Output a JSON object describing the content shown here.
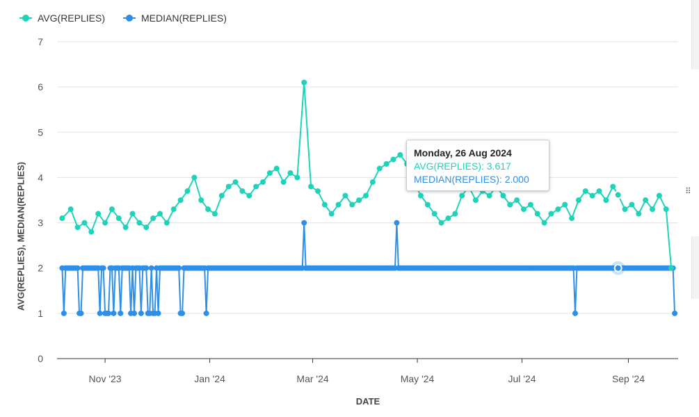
{
  "chart_data": {
    "type": "line",
    "xlabel": "DATE",
    "ylabel": "AVG(REPLIES), MEDIAN(REPLIES)",
    "ylim": [
      0,
      7
    ],
    "yticks": [
      0,
      1,
      2,
      3,
      4,
      5,
      6,
      7
    ],
    "xlim": [
      "2023-10-04",
      "2024-09-30"
    ],
    "xticks": [
      {
        "date": "2023-11-01",
        "label": "Nov '23"
      },
      {
        "date": "2024-01-01",
        "label": "Jan '24"
      },
      {
        "date": "2024-03-01",
        "label": "Mar '24"
      },
      {
        "date": "2024-05-01",
        "label": "May '24"
      },
      {
        "date": "2024-07-01",
        "label": "Jul '24"
      },
      {
        "date": "2024-09-01",
        "label": "Sep '24"
      }
    ],
    "grid": true,
    "legend": "top-left",
    "series": [
      {
        "name": "AVG(REPLIES)",
        "color": "#1ed3b9",
        "points": [
          [
            "2023-10-07",
            3.1
          ],
          [
            "2023-10-12",
            3.3
          ],
          [
            "2023-10-16",
            2.9
          ],
          [
            "2023-10-20",
            3.0
          ],
          [
            "2023-10-24",
            2.8
          ],
          [
            "2023-10-28",
            3.2
          ],
          [
            "2023-11-01",
            3.0
          ],
          [
            "2023-11-05",
            3.3
          ],
          [
            "2023-11-09",
            3.1
          ],
          [
            "2023-11-13",
            2.9
          ],
          [
            "2023-11-17",
            3.2
          ],
          [
            "2023-11-21",
            3.0
          ],
          [
            "2023-11-25",
            2.9
          ],
          [
            "2023-11-29",
            3.1
          ],
          [
            "2023-12-03",
            3.2
          ],
          [
            "2023-12-07",
            3.0
          ],
          [
            "2023-12-11",
            3.3
          ],
          [
            "2023-12-15",
            3.5
          ],
          [
            "2023-12-19",
            3.7
          ],
          [
            "2023-12-23",
            4.0
          ],
          [
            "2023-12-27",
            3.5
          ],
          [
            "2023-12-31",
            3.3
          ],
          [
            "2024-01-04",
            3.2
          ],
          [
            "2024-01-08",
            3.6
          ],
          [
            "2024-01-12",
            3.8
          ],
          [
            "2024-01-16",
            3.9
          ],
          [
            "2024-01-20",
            3.7
          ],
          [
            "2024-01-24",
            3.6
          ],
          [
            "2024-01-28",
            3.8
          ],
          [
            "2024-02-01",
            3.9
          ],
          [
            "2024-02-05",
            4.1
          ],
          [
            "2024-02-09",
            4.2
          ],
          [
            "2024-02-13",
            3.9
          ],
          [
            "2024-02-17",
            4.1
          ],
          [
            "2024-02-21",
            4.0
          ],
          [
            "2024-02-25",
            6.1
          ],
          [
            "2024-02-29",
            3.8
          ],
          [
            "2024-03-04",
            3.7
          ],
          [
            "2024-03-08",
            3.4
          ],
          [
            "2024-03-12",
            3.2
          ],
          [
            "2024-03-16",
            3.4
          ],
          [
            "2024-03-20",
            3.6
          ],
          [
            "2024-03-24",
            3.4
          ],
          [
            "2024-03-28",
            3.5
          ],
          [
            "2024-04-01",
            3.6
          ],
          [
            "2024-04-05",
            3.9
          ],
          [
            "2024-04-09",
            4.2
          ],
          [
            "2024-04-13",
            4.3
          ],
          [
            "2024-04-17",
            4.4
          ],
          [
            "2024-04-21",
            4.5
          ],
          [
            "2024-04-25",
            4.3
          ],
          [
            "2024-04-29",
            3.9
          ],
          [
            "2024-05-03",
            3.6
          ],
          [
            "2024-05-07",
            3.4
          ],
          [
            "2024-05-11",
            3.2
          ],
          [
            "2024-05-15",
            3.0
          ],
          [
            "2024-05-19",
            3.1
          ],
          [
            "2024-05-23",
            3.2
          ],
          [
            "2024-05-27",
            3.6
          ],
          [
            "2024-05-31",
            3.8
          ],
          [
            "2024-06-04",
            3.5
          ],
          [
            "2024-06-08",
            3.7
          ],
          [
            "2024-06-12",
            3.6
          ],
          [
            "2024-06-16",
            3.8
          ],
          [
            "2024-06-20",
            3.6
          ],
          [
            "2024-06-24",
            3.4
          ],
          [
            "2024-06-28",
            3.5
          ],
          [
            "2024-07-02",
            3.3
          ],
          [
            "2024-07-06",
            3.4
          ],
          [
            "2024-07-10",
            3.2
          ],
          [
            "2024-07-14",
            3.0
          ],
          [
            "2024-07-18",
            3.2
          ],
          [
            "2024-07-22",
            3.3
          ],
          [
            "2024-07-26",
            3.4
          ],
          [
            "2024-07-30",
            3.1
          ],
          [
            "2024-08-03",
            3.5
          ],
          [
            "2024-08-07",
            3.7
          ],
          [
            "2024-08-11",
            3.6
          ],
          [
            "2024-08-15",
            3.7
          ],
          [
            "2024-08-19",
            3.5
          ],
          [
            "2024-08-23",
            3.8
          ],
          [
            "2024-08-26",
            3.617
          ],
          [
            "2024-08-30",
            3.3
          ],
          [
            "2024-09-03",
            3.4
          ],
          [
            "2024-09-07",
            3.2
          ],
          [
            "2024-09-11",
            3.5
          ],
          [
            "2024-09-15",
            3.3
          ],
          [
            "2024-09-19",
            3.6
          ],
          [
            "2024-09-23",
            3.3
          ],
          [
            "2024-09-26",
            2.0
          ]
        ]
      },
      {
        "name": "MEDIAN(REPLIES)",
        "color": "#2f8fe7",
        "baseline": 2,
        "start": "2023-10-07",
        "end": "2024-09-28",
        "exceptions": [
          [
            "2023-10-08",
            1
          ],
          [
            "2023-10-17",
            1
          ],
          [
            "2023-10-18",
            1
          ],
          [
            "2023-10-29",
            1
          ],
          [
            "2023-11-01",
            1
          ],
          [
            "2023-11-02",
            1
          ],
          [
            "2023-11-03",
            1
          ],
          [
            "2023-11-06",
            1
          ],
          [
            "2023-11-10",
            1
          ],
          [
            "2023-11-16",
            1
          ],
          [
            "2023-11-18",
            1
          ],
          [
            "2023-11-22",
            1
          ],
          [
            "2023-11-26",
            1
          ],
          [
            "2023-11-27",
            1
          ],
          [
            "2023-11-29",
            1
          ],
          [
            "2023-11-30",
            1
          ],
          [
            "2023-12-02",
            1
          ],
          [
            "2023-12-15",
            1
          ],
          [
            "2023-12-16",
            1
          ],
          [
            "2023-12-30",
            1
          ],
          [
            "2024-02-25",
            3
          ],
          [
            "2024-04-19",
            3
          ],
          [
            "2024-08-01",
            1
          ],
          [
            "2024-09-28",
            1
          ]
        ]
      }
    ],
    "tooltip": {
      "title": "Monday, 26 Aug 2024",
      "lines": [
        "AVG(REPLIES): 3.617",
        "MEDIAN(REPLIES): 2.000"
      ]
    }
  }
}
